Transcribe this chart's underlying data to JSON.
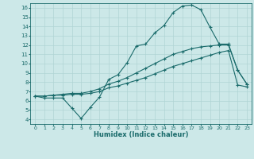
{
  "title": "",
  "xlabel": "Humidex (Indice chaleur)",
  "bg_color": "#cce8e8",
  "line_color": "#1a6b6b",
  "grid_color": "#b0d4d4",
  "xlim": [
    -0.5,
    23.5
  ],
  "ylim": [
    3.5,
    16.5
  ],
  "xticks": [
    0,
    1,
    2,
    3,
    4,
    5,
    6,
    7,
    8,
    9,
    10,
    11,
    12,
    13,
    14,
    15,
    16,
    17,
    18,
    19,
    20,
    21,
    22,
    23
  ],
  "yticks": [
    4,
    5,
    6,
    7,
    8,
    9,
    10,
    11,
    12,
    13,
    14,
    15,
    16
  ],
  "curve1_x": [
    0,
    1,
    2,
    3,
    4,
    5,
    6,
    7,
    8,
    9,
    10,
    11,
    12,
    13,
    14,
    15,
    16,
    17,
    18,
    19,
    20,
    21,
    22,
    23
  ],
  "curve1_y": [
    6.5,
    6.3,
    6.3,
    6.3,
    5.2,
    4.1,
    5.3,
    6.4,
    8.3,
    8.8,
    10.1,
    11.9,
    12.1,
    13.3,
    14.1,
    15.5,
    16.2,
    16.3,
    15.8,
    13.9,
    12.1,
    12.1,
    9.3,
    7.8
  ],
  "curve2_x": [
    0,
    1,
    2,
    3,
    4,
    5,
    6,
    7,
    8,
    9,
    10,
    11,
    12,
    13,
    14,
    15,
    16,
    17,
    18,
    19,
    20,
    21,
    22,
    23
  ],
  "curve2_y": [
    6.5,
    6.5,
    6.6,
    6.7,
    6.8,
    6.8,
    7.0,
    7.3,
    7.8,
    8.1,
    8.5,
    9.0,
    9.5,
    10.0,
    10.5,
    11.0,
    11.3,
    11.6,
    11.8,
    11.9,
    12.0,
    12.0,
    9.3,
    7.8
  ],
  "curve3_x": [
    0,
    1,
    2,
    3,
    4,
    5,
    6,
    7,
    8,
    9,
    10,
    11,
    12,
    13,
    14,
    15,
    16,
    17,
    18,
    19,
    20,
    21,
    22,
    23
  ],
  "curve3_y": [
    6.5,
    6.5,
    6.6,
    6.6,
    6.7,
    6.7,
    6.8,
    7.0,
    7.4,
    7.6,
    7.9,
    8.2,
    8.5,
    8.9,
    9.3,
    9.7,
    10.0,
    10.3,
    10.6,
    10.9,
    11.2,
    11.4,
    7.7,
    7.5
  ]
}
